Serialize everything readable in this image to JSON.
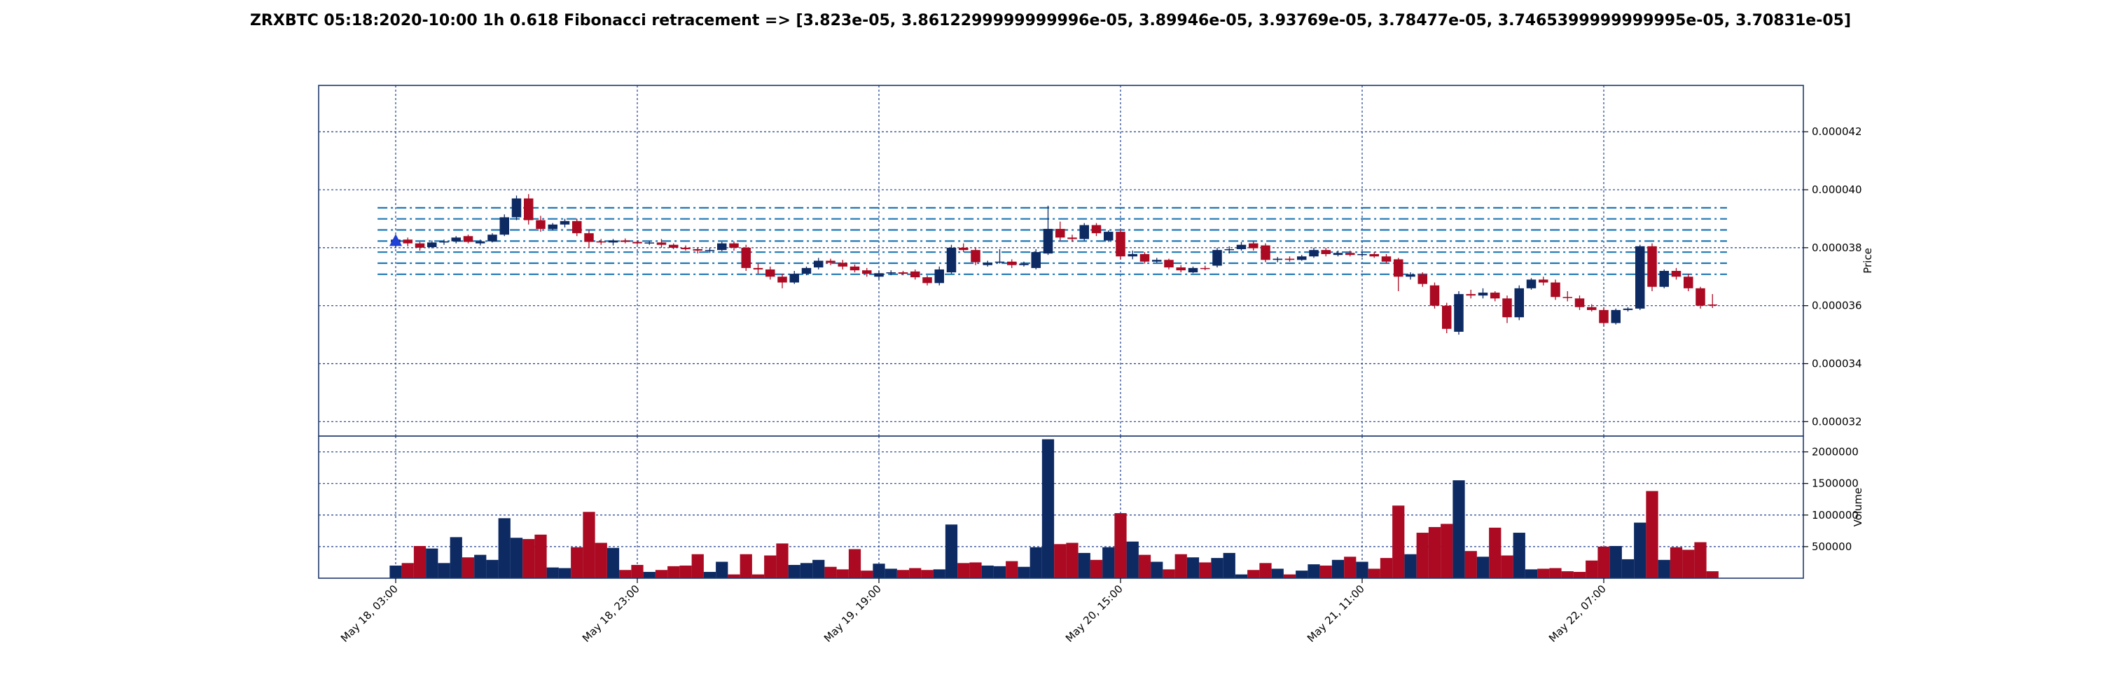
{
  "chart_data": {
    "type": "candlestick",
    "title": "ZRXBTC 05:18:2020-10:00 1h 0.618 Fibonacci retracement => [3.823e-05, 3.8612299999999996e-05, 3.89946e-05, 3.93769e-05, 3.78477e-05, 3.7465399999999995e-05, 3.70831e-05]",
    "price_axis": {
      "label": "Price",
      "ylim": [
        3.15e-05,
        4.36e-05
      ],
      "ticks": [
        3.2e-05,
        3.4e-05,
        3.6e-05,
        3.8e-05,
        4e-05,
        4.2e-05
      ],
      "tick_labels": [
        "0.000032",
        "0.000034",
        "0.000036",
        "0.000038",
        "0.000040",
        "0.000042"
      ],
      "grid": true
    },
    "volume_axis": {
      "label": "Volume",
      "ylim": [
        0,
        2250000
      ],
      "ticks": [
        500000,
        1000000,
        1500000,
        2000000
      ],
      "tick_labels": [
        "500000",
        "1000000",
        "1500000",
        "2000000"
      ],
      "grid": true
    },
    "x_axis": {
      "tick_indices": [
        0,
        20,
        40,
        60,
        80,
        100
      ],
      "tick_labels": [
        "May 18, 03:00",
        "May 18, 23:00",
        "May 19, 19:00",
        "May 20, 15:00",
        "May 21, 11:00",
        "May 22, 07:00"
      ],
      "grid": true
    },
    "fib_levels": [
      3.823e-05,
      3.8612299999999996e-05,
      3.89946e-05,
      3.93769e-05,
      3.78477e-05,
      3.7465399999999995e-05,
      3.70831e-05
    ],
    "marker": {
      "index": 0,
      "price": 3.823e-05,
      "shape": "triangle-up"
    },
    "colors": {
      "up": "#0d2a63",
      "down": "#ab0a22",
      "fib_line": "#1f77b4",
      "grid": "#1f3f8f",
      "frame": "#1f3a6e",
      "marker": "#1f3fd6"
    },
    "candles": [
      {
        "o": 3.818e-05,
        "h": 3.832e-05,
        "l": 3.8e-05,
        "c": 3.828e-05,
        "v": 200000
      },
      {
        "o": 3.828e-05,
        "h": 3.835e-05,
        "l": 3.805e-05,
        "c": 3.815e-05,
        "v": 240000
      },
      {
        "o": 3.815e-05,
        "h": 3.82e-05,
        "l": 3.79e-05,
        "c": 3.8e-05,
        "v": 510000
      },
      {
        "o": 3.802e-05,
        "h": 3.825e-05,
        "l": 3.798e-05,
        "c": 3.818e-05,
        "v": 470000
      },
      {
        "o": 3.818e-05,
        "h": 3.828e-05,
        "l": 3.81e-05,
        "c": 3.822e-05,
        "v": 240000
      },
      {
        "o": 3.822e-05,
        "h": 3.84e-05,
        "l": 3.815e-05,
        "c": 3.835e-05,
        "v": 650000
      },
      {
        "o": 3.84e-05,
        "h": 3.845e-05,
        "l": 3.815e-05,
        "c": 3.82e-05,
        "v": 330000
      },
      {
        "o": 3.815e-05,
        "h": 3.828e-05,
        "l": 3.808e-05,
        "c": 3.822e-05,
        "v": 370000
      },
      {
        "o": 3.822e-05,
        "h": 3.85e-05,
        "l": 3.818e-05,
        "c": 3.845e-05,
        "v": 290000
      },
      {
        "o": 3.845e-05,
        "h": 3.915e-05,
        "l": 3.84e-05,
        "c": 3.905e-05,
        "v": 950000
      },
      {
        "o": 3.905e-05,
        "h": 3.98e-05,
        "l": 3.895e-05,
        "c": 3.97e-05,
        "v": 640000
      },
      {
        "o": 3.97e-05,
        "h": 3.985e-05,
        "l": 3.88e-05,
        "c": 3.895e-05,
        "v": 620000
      },
      {
        "o": 3.895e-05,
        "h": 3.91e-05,
        "l": 3.855e-05,
        "c": 3.865e-05,
        "v": 690000
      },
      {
        "o": 3.865e-05,
        "h": 3.885e-05,
        "l": 3.86e-05,
        "c": 3.88e-05,
        "v": 170000
      },
      {
        "o": 3.88e-05,
        "h": 3.9e-05,
        "l": 3.87e-05,
        "c": 3.892e-05,
        "v": 160000
      },
      {
        "o": 3.892e-05,
        "h": 3.9e-05,
        "l": 3.84e-05,
        "c": 3.85e-05,
        "v": 490000
      },
      {
        "o": 3.85e-05,
        "h": 3.86e-05,
        "l": 3.8e-05,
        "c": 3.82e-05,
        "v": 1050000
      },
      {
        "o": 3.822e-05,
        "h": 3.83e-05,
        "l": 3.81e-05,
        "c": 3.818e-05,
        "v": 560000
      },
      {
        "o": 3.818e-05,
        "h": 3.83e-05,
        "l": 3.808e-05,
        "c": 3.825e-05,
        "v": 480000
      },
      {
        "o": 3.825e-05,
        "h": 3.832e-05,
        "l": 3.815e-05,
        "c": 3.82e-05,
        "v": 130000
      },
      {
        "o": 3.82e-05,
        "h": 3.825e-05,
        "l": 3.81e-05,
        "c": 3.815e-05,
        "v": 210000
      },
      {
        "o": 3.815e-05,
        "h": 3.822e-05,
        "l": 3.81e-05,
        "c": 3.818e-05,
        "v": 100000
      },
      {
        "o": 3.818e-05,
        "h": 3.83e-05,
        "l": 3.8e-05,
        "c": 3.81e-05,
        "v": 130000
      },
      {
        "o": 3.81e-05,
        "h": 3.815e-05,
        "l": 3.795e-05,
        "c": 3.8e-05,
        "v": 190000
      },
      {
        "o": 3.8e-05,
        "h": 3.808e-05,
        "l": 3.79e-05,
        "c": 3.795e-05,
        "v": 200000
      },
      {
        "o": 3.795e-05,
        "h": 3.8e-05,
        "l": 3.78e-05,
        "c": 3.79e-05,
        "v": 380000
      },
      {
        "o": 3.79e-05,
        "h": 3.8e-05,
        "l": 3.782e-05,
        "c": 3.792e-05,
        "v": 100000
      },
      {
        "o": 3.792e-05,
        "h": 3.82e-05,
        "l": 3.788e-05,
        "c": 3.815e-05,
        "v": 260000
      },
      {
        "o": 3.815e-05,
        "h": 3.822e-05,
        "l": 3.79e-05,
        "c": 3.8e-05,
        "v": 60000
      },
      {
        "o": 3.8e-05,
        "h": 3.81e-05,
        "l": 3.72e-05,
        "c": 3.73e-05,
        "v": 380000
      },
      {
        "o": 3.73e-05,
        "h": 3.745e-05,
        "l": 3.71e-05,
        "c": 3.725e-05,
        "v": 60000
      },
      {
        "o": 3.725e-05,
        "h": 3.735e-05,
        "l": 3.69e-05,
        "c": 3.7e-05,
        "v": 360000
      },
      {
        "o": 3.7e-05,
        "h": 3.71e-05,
        "l": 3.66e-05,
        "c": 3.68e-05,
        "v": 550000
      },
      {
        "o": 3.68e-05,
        "h": 3.72e-05,
        "l": 3.675e-05,
        "c": 3.71e-05,
        "v": 210000
      },
      {
        "o": 3.71e-05,
        "h": 3.735e-05,
        "l": 3.705e-05,
        "c": 3.73e-05,
        "v": 240000
      },
      {
        "o": 3.732e-05,
        "h": 3.765e-05,
        "l": 3.725e-05,
        "c": 3.755e-05,
        "v": 290000
      },
      {
        "o": 3.755e-05,
        "h": 3.762e-05,
        "l": 3.74e-05,
        "c": 3.748e-05,
        "v": 180000
      },
      {
        "o": 3.748e-05,
        "h": 3.758e-05,
        "l": 3.725e-05,
        "c": 3.735e-05,
        "v": 140000
      },
      {
        "o": 3.735e-05,
        "h": 3.742e-05,
        "l": 3.715e-05,
        "c": 3.722e-05,
        "v": 460000
      },
      {
        "o": 3.722e-05,
        "h": 3.73e-05,
        "l": 3.7e-05,
        "c": 3.71e-05,
        "v": 120000
      },
      {
        "o": 3.7e-05,
        "h": 3.72e-05,
        "l": 3.69e-05,
        "c": 3.712e-05,
        "v": 230000
      },
      {
        "o": 3.712e-05,
        "h": 3.722e-05,
        "l": 3.705e-05,
        "c": 3.715e-05,
        "v": 150000
      },
      {
        "o": 3.715e-05,
        "h": 3.72e-05,
        "l": 3.705e-05,
        "c": 3.71e-05,
        "v": 130000
      },
      {
        "o": 3.718e-05,
        "h": 3.725e-05,
        "l": 3.69e-05,
        "c": 3.698e-05,
        "v": 160000
      },
      {
        "o": 3.698e-05,
        "h": 3.705e-05,
        "l": 3.67e-05,
        "c": 3.678e-05,
        "v": 130000
      },
      {
        "o": 3.678e-05,
        "h": 3.735e-05,
        "l": 3.67e-05,
        "c": 3.725e-05,
        "v": 140000
      },
      {
        "o": 3.715e-05,
        "h": 3.81e-05,
        "l": 3.71e-05,
        "c": 3.8e-05,
        "v": 850000
      },
      {
        "o": 3.8e-05,
        "h": 3.815e-05,
        "l": 3.785e-05,
        "c": 3.792e-05,
        "v": 240000
      },
      {
        "o": 3.792e-05,
        "h": 3.8e-05,
        "l": 3.74e-05,
        "c": 3.75e-05,
        "v": 250000
      },
      {
        "o": 3.74e-05,
        "h": 3.755e-05,
        "l": 3.735e-05,
        "c": 3.748e-05,
        "v": 200000
      },
      {
        "o": 3.75e-05,
        "h": 3.795e-05,
        "l": 3.745e-05,
        "c": 3.752e-05,
        "v": 190000
      },
      {
        "o": 3.752e-05,
        "h": 3.76e-05,
        "l": 3.73e-05,
        "c": 3.74e-05,
        "v": 270000
      },
      {
        "o": 3.74e-05,
        "h": 3.752e-05,
        "l": 3.735e-05,
        "c": 3.745e-05,
        "v": 180000
      },
      {
        "o": 3.73e-05,
        "h": 3.795e-05,
        "l": 3.725e-05,
        "c": 3.785e-05,
        "v": 490000
      },
      {
        "o": 3.78e-05,
        "h": 3.945e-05,
        "l": 3.775e-05,
        "c": 3.865e-05,
        "v": 2200000
      },
      {
        "o": 3.865e-05,
        "h": 3.89e-05,
        "l": 3.825e-05,
        "c": 3.835e-05,
        "v": 540000
      },
      {
        "o": 3.835e-05,
        "h": 3.845e-05,
        "l": 3.82e-05,
        "c": 3.83e-05,
        "v": 560000
      },
      {
        "o": 3.83e-05,
        "h": 3.885e-05,
        "l": 3.825e-05,
        "c": 3.878e-05,
        "v": 400000
      },
      {
        "o": 3.878e-05,
        "h": 3.885e-05,
        "l": 3.84e-05,
        "c": 3.85e-05,
        "v": 290000
      },
      {
        "o": 3.825e-05,
        "h": 3.86e-05,
        "l": 3.82e-05,
        "c": 3.855e-05,
        "v": 490000
      },
      {
        "o": 3.855e-05,
        "h": 3.862e-05,
        "l": 3.76e-05,
        "c": 3.77e-05,
        "v": 1030000
      },
      {
        "o": 3.77e-05,
        "h": 3.79e-05,
        "l": 3.76e-05,
        "c": 3.778e-05,
        "v": 580000
      },
      {
        "o": 3.778e-05,
        "h": 3.785e-05,
        "l": 3.745e-05,
        "c": 3.752e-05,
        "v": 370000
      },
      {
        "o": 3.752e-05,
        "h": 3.765e-05,
        "l": 3.748e-05,
        "c": 3.758e-05,
        "v": 260000
      },
      {
        "o": 3.758e-05,
        "h": 3.762e-05,
        "l": 3.725e-05,
        "c": 3.732e-05,
        "v": 140000
      },
      {
        "o": 3.732e-05,
        "h": 3.74e-05,
        "l": 3.715e-05,
        "c": 3.722e-05,
        "v": 380000
      },
      {
        "o": 3.715e-05,
        "h": 3.735e-05,
        "l": 3.712e-05,
        "c": 3.73e-05,
        "v": 330000
      },
      {
        "o": 3.73e-05,
        "h": 3.738e-05,
        "l": 3.722e-05,
        "c": 3.728e-05,
        "v": 250000
      },
      {
        "o": 3.738e-05,
        "h": 3.8e-05,
        "l": 3.732e-05,
        "c": 3.792e-05,
        "v": 320000
      },
      {
        "o": 3.792e-05,
        "h": 3.805e-05,
        "l": 3.78e-05,
        "c": 3.795e-05,
        "v": 400000
      },
      {
        "o": 3.795e-05,
        "h": 3.82e-05,
        "l": 3.79e-05,
        "c": 3.81e-05,
        "v": 60000
      },
      {
        "o": 3.815e-05,
        "h": 3.822e-05,
        "l": 3.79e-05,
        "c": 3.798e-05,
        "v": 130000
      },
      {
        "o": 3.808e-05,
        "h": 3.815e-05,
        "l": 3.75e-05,
        "c": 3.758e-05,
        "v": 240000
      },
      {
        "o": 3.758e-05,
        "h": 3.768e-05,
        "l": 3.75e-05,
        "c": 3.762e-05,
        "v": 150000
      },
      {
        "o": 3.762e-05,
        "h": 3.77e-05,
        "l": 3.752e-05,
        "c": 3.758e-05,
        "v": 60000
      },
      {
        "o": 3.758e-05,
        "h": 3.775e-05,
        "l": 3.755e-05,
        "c": 3.77e-05,
        "v": 120000
      },
      {
        "o": 3.77e-05,
        "h": 3.8e-05,
        "l": 3.765e-05,
        "c": 3.792e-05,
        "v": 220000
      },
      {
        "o": 3.792e-05,
        "h": 3.8e-05,
        "l": 3.77e-05,
        "c": 3.778e-05,
        "v": 200000
      },
      {
        "o": 3.775e-05,
        "h": 3.79e-05,
        "l": 3.77e-05,
        "c": 3.782e-05,
        "v": 290000
      },
      {
        "o": 3.782e-05,
        "h": 3.79e-05,
        "l": 3.77e-05,
        "c": 3.775e-05,
        "v": 340000
      },
      {
        "o": 3.775e-05,
        "h": 3.785e-05,
        "l": 3.768e-05,
        "c": 3.778e-05,
        "v": 260000
      },
      {
        "o": 3.778e-05,
        "h": 3.785e-05,
        "l": 3.765e-05,
        "c": 3.77e-05,
        "v": 150000
      },
      {
        "o": 3.77e-05,
        "h": 3.778e-05,
        "l": 3.745e-05,
        "c": 3.752e-05,
        "v": 320000
      },
      {
        "o": 3.76e-05,
        "h": 3.765e-05,
        "l": 3.65e-05,
        "c": 3.7e-05,
        "v": 1150000
      },
      {
        "o": 3.7e-05,
        "h": 3.715e-05,
        "l": 3.69e-05,
        "c": 3.708e-05,
        "v": 380000
      },
      {
        "o": 3.708e-05,
        "h": 3.715e-05,
        "l": 3.665e-05,
        "c": 3.675e-05,
        "v": 720000
      },
      {
        "o": 3.67e-05,
        "h": 3.68e-05,
        "l": 3.59e-05,
        "c": 3.6e-05,
        "v": 810000
      },
      {
        "o": 3.6e-05,
        "h": 3.61e-05,
        "l": 3.505e-05,
        "c": 3.52e-05,
        "v": 860000
      },
      {
        "o": 3.51e-05,
        "h": 3.65e-05,
        "l": 3.5e-05,
        "c": 3.64e-05,
        "v": 1550000
      },
      {
        "o": 3.64e-05,
        "h": 3.655e-05,
        "l": 3.625e-05,
        "c": 3.635e-05,
        "v": 430000
      },
      {
        "o": 3.635e-05,
        "h": 3.66e-05,
        "l": 3.625e-05,
        "c": 3.645e-05,
        "v": 340000
      },
      {
        "o": 3.645e-05,
        "h": 3.65e-05,
        "l": 3.615e-05,
        "c": 3.625e-05,
        "v": 800000
      },
      {
        "o": 3.625e-05,
        "h": 3.635e-05,
        "l": 3.54e-05,
        "c": 3.56e-05,
        "v": 360000
      },
      {
        "o": 3.56e-05,
        "h": 3.67e-05,
        "l": 3.55e-05,
        "c": 3.66e-05,
        "v": 720000
      },
      {
        "o": 3.66e-05,
        "h": 3.695e-05,
        "l": 3.655e-05,
        "c": 3.69e-05,
        "v": 140000
      },
      {
        "o": 3.69e-05,
        "h": 3.7e-05,
        "l": 3.67e-05,
        "c": 3.68e-05,
        "v": 150000
      },
      {
        "o": 3.68e-05,
        "h": 3.69e-05,
        "l": 3.62e-05,
        "c": 3.63e-05,
        "v": 160000
      },
      {
        "o": 3.63e-05,
        "h": 3.65e-05,
        "l": 3.615e-05,
        "c": 3.628e-05,
        "v": 110000
      },
      {
        "o": 3.625e-05,
        "h": 3.635e-05,
        "l": 3.585e-05,
        "c": 3.595e-05,
        "v": 100000
      },
      {
        "o": 3.595e-05,
        "h": 3.605e-05,
        "l": 3.58e-05,
        "c": 3.585e-05,
        "v": 280000
      },
      {
        "o": 3.585e-05,
        "h": 3.595e-05,
        "l": 3.53e-05,
        "c": 3.54e-05,
        "v": 500000
      },
      {
        "o": 3.54e-05,
        "h": 3.59e-05,
        "l": 3.535e-05,
        "c": 3.585e-05,
        "v": 510000
      },
      {
        "o": 3.585e-05,
        "h": 3.595e-05,
        "l": 3.58e-05,
        "c": 3.59e-05,
        "v": 300000
      },
      {
        "o": 3.59e-05,
        "h": 3.81e-05,
        "l": 3.585e-05,
        "c": 3.805e-05,
        "v": 880000
      },
      {
        "o": 3.805e-05,
        "h": 3.815e-05,
        "l": 3.65e-05,
        "c": 3.665e-05,
        "v": 1380000
      },
      {
        "o": 3.665e-05,
        "h": 3.725e-05,
        "l": 3.66e-05,
        "c": 3.72e-05,
        "v": 290000
      },
      {
        "o": 3.72e-05,
        "h": 3.73e-05,
        "l": 3.69e-05,
        "c": 3.7e-05,
        "v": 490000
      },
      {
        "o": 3.7e-05,
        "h": 3.71e-05,
        "l": 3.65e-05,
        "c": 3.66e-05,
        "v": 450000
      },
      {
        "o": 3.66e-05,
        "h": 3.665e-05,
        "l": 3.59e-05,
        "c": 3.6e-05,
        "v": 570000
      },
      {
        "o": 3.604e-05,
        "h": 3.64e-05,
        "l": 3.592e-05,
        "c": 3.603e-05,
        "v": 110000
      }
    ]
  }
}
